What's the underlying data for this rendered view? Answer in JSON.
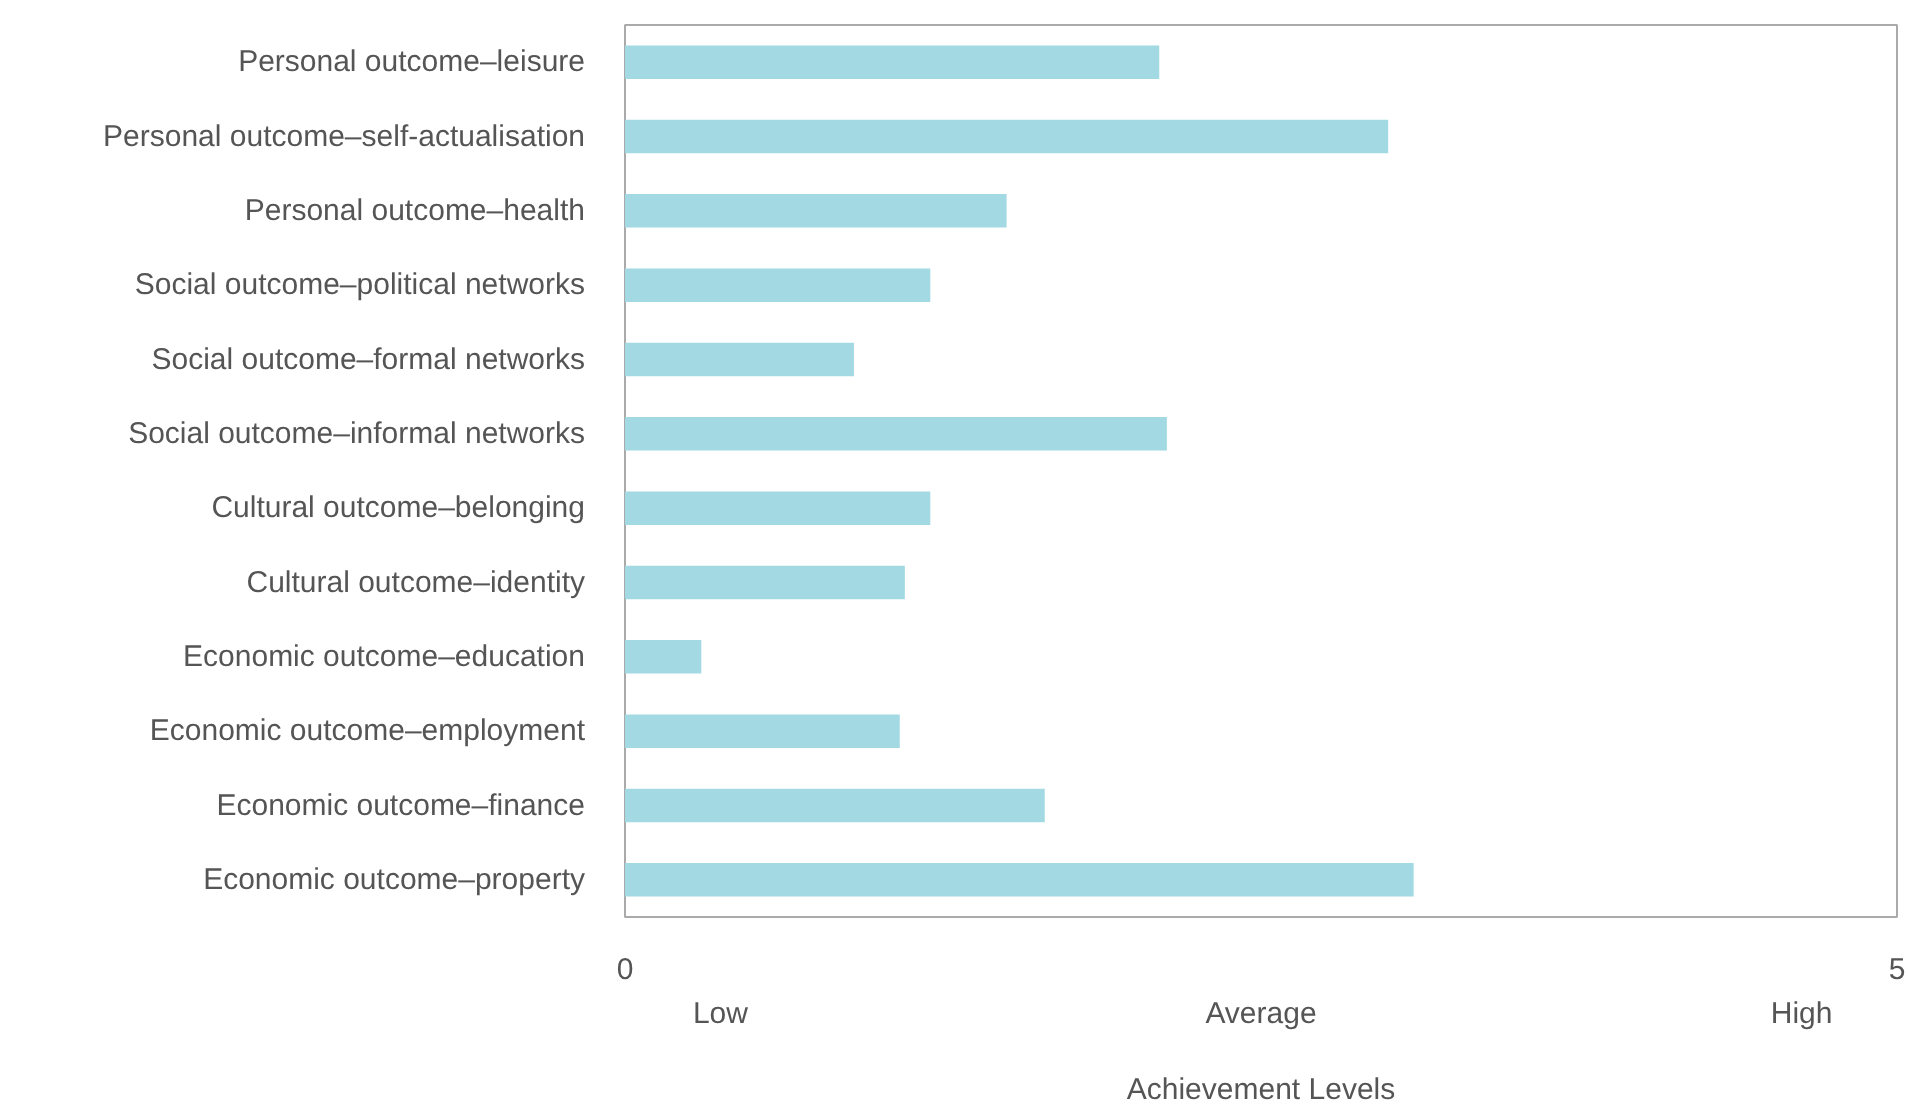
{
  "chart_data": {
    "type": "bar",
    "orientation": "horizontal",
    "xlabel": "Achievement Levels",
    "categories": [
      "Personal outcome–leisure",
      "Personal outcome–self-actualisation",
      "Personal outcome–health",
      "Social outcome–political networks",
      "Social outcome–formal networks",
      "Social outcome–informal networks",
      "Cultural outcome–belonging",
      "Cultural outcome–identity",
      "Economic outcome–education",
      "Economic outcome–employment",
      "Economic outcome–finance",
      "Economic outcome–property"
    ],
    "values": [
      2.1,
      3.0,
      1.5,
      1.2,
      0.9,
      2.13,
      1.2,
      1.1,
      0.3,
      1.08,
      1.65,
      3.1
    ],
    "color": "#a3d9e3",
    "xlim": [
      0,
      5
    ],
    "xticks": [
      0,
      5
    ],
    "grid": false,
    "annotations": [
      "Low",
      "Average",
      "High"
    ]
  }
}
